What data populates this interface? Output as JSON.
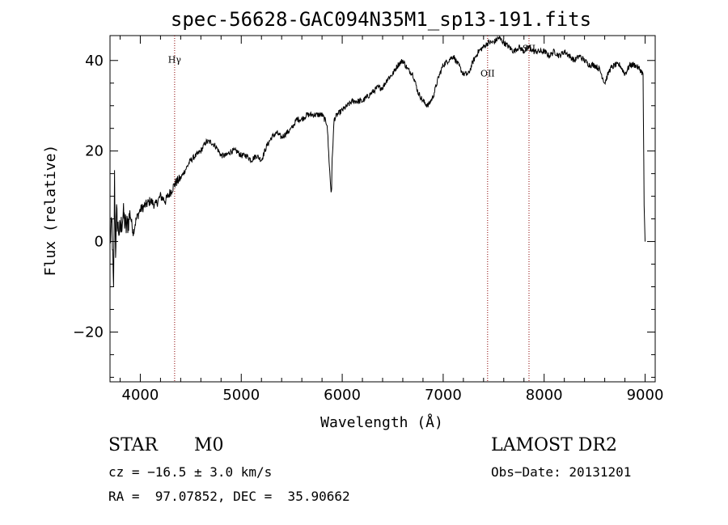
{
  "chart_data": {
    "type": "line",
    "title": "spec-56628-GAC094N35M1_sp13-191.fits",
    "xlabel": "Wavelength (Å)",
    "ylabel": "Flux (relative)",
    "xlim": [
      3700,
      9100
    ],
    "ylim": [
      -31,
      45.5
    ],
    "xticks": [
      4000,
      5000,
      6000,
      7000,
      8000,
      9000
    ],
    "xtick_labels": [
      "4000",
      "5000",
      "6000",
      "7000",
      "8000",
      "9000"
    ],
    "yticks": [
      -20,
      0,
      20,
      40
    ],
    "ytick_labels": [
      "−20",
      "0",
      "20",
      "40"
    ],
    "grid": false,
    "series": [
      {
        "color": "#000000",
        "points": [
          [
            3700,
            0
          ],
          [
            3720,
            4
          ],
          [
            3735,
            -12
          ],
          [
            3745,
            14
          ],
          [
            3755,
            -2
          ],
          [
            3765,
            6
          ],
          [
            3780,
            3
          ],
          [
            3800,
            2
          ],
          [
            3830,
            6
          ],
          [
            3860,
            3
          ],
          [
            3900,
            6
          ],
          [
            3930,
            2
          ],
          [
            3960,
            5
          ],
          [
            4000,
            7
          ],
          [
            4050,
            8
          ],
          [
            4100,
            9
          ],
          [
            4150,
            8
          ],
          [
            4200,
            10
          ],
          [
            4250,
            9
          ],
          [
            4300,
            11
          ],
          [
            4350,
            13
          ],
          [
            4400,
            14
          ],
          [
            4450,
            16
          ],
          [
            4500,
            18
          ],
          [
            4550,
            19
          ],
          [
            4600,
            20
          ],
          [
            4650,
            22
          ],
          [
            4700,
            22
          ],
          [
            4750,
            21
          ],
          [
            4800,
            19
          ],
          [
            4850,
            19
          ],
          [
            4900,
            20
          ],
          [
            4950,
            20
          ],
          [
            5000,
            19
          ],
          [
            5050,
            19
          ],
          [
            5100,
            18
          ],
          [
            5150,
            19
          ],
          [
            5200,
            18
          ],
          [
            5250,
            21
          ],
          [
            5300,
            23
          ],
          [
            5350,
            24
          ],
          [
            5400,
            23
          ],
          [
            5450,
            24
          ],
          [
            5500,
            25
          ],
          [
            5550,
            27
          ],
          [
            5600,
            27
          ],
          [
            5650,
            28
          ],
          [
            5700,
            28
          ],
          [
            5750,
            28
          ],
          [
            5800,
            28
          ],
          [
            5850,
            26
          ],
          [
            5870,
            18
          ],
          [
            5880,
            14
          ],
          [
            5890,
            11
          ],
          [
            5895,
            12
          ],
          [
            5900,
            18
          ],
          [
            5920,
            27
          ],
          [
            5950,
            28
          ],
          [
            6000,
            29
          ],
          [
            6050,
            30
          ],
          [
            6100,
            31
          ],
          [
            6150,
            31
          ],
          [
            6200,
            31
          ],
          [
            6250,
            32
          ],
          [
            6300,
            33
          ],
          [
            6350,
            34
          ],
          [
            6400,
            34
          ],
          [
            6450,
            36
          ],
          [
            6500,
            37
          ],
          [
            6550,
            39
          ],
          [
            6600,
            40
          ],
          [
            6650,
            38
          ],
          [
            6700,
            37
          ],
          [
            6750,
            33
          ],
          [
            6800,
            31
          ],
          [
            6850,
            30
          ],
          [
            6900,
            32
          ],
          [
            6950,
            36
          ],
          [
            7000,
            39
          ],
          [
            7050,
            40
          ],
          [
            7100,
            41
          ],
          [
            7150,
            39
          ],
          [
            7200,
            37
          ],
          [
            7250,
            37
          ],
          [
            7300,
            40
          ],
          [
            7350,
            42
          ],
          [
            7400,
            43
          ],
          [
            7450,
            44
          ],
          [
            7500,
            44
          ],
          [
            7550,
            45
          ],
          [
            7600,
            44
          ],
          [
            7650,
            43
          ],
          [
            7700,
            42
          ],
          [
            7750,
            43
          ],
          [
            7800,
            42
          ],
          [
            7850,
            43
          ],
          [
            7900,
            42
          ],
          [
            7950,
            42
          ],
          [
            8000,
            42
          ],
          [
            8050,
            41
          ],
          [
            8100,
            42
          ],
          [
            8150,
            41
          ],
          [
            8200,
            42
          ],
          [
            8250,
            41
          ],
          [
            8300,
            40
          ],
          [
            8350,
            41
          ],
          [
            8400,
            40
          ],
          [
            8450,
            39
          ],
          [
            8500,
            39
          ],
          [
            8550,
            38
          ],
          [
            8600,
            35
          ],
          [
            8650,
            38
          ],
          [
            8700,
            39
          ],
          [
            8750,
            39
          ],
          [
            8800,
            37
          ],
          [
            8850,
            39
          ],
          [
            8900,
            39
          ],
          [
            8950,
            38
          ],
          [
            8980,
            37
          ],
          [
            8990,
            8
          ],
          [
            9000,
            0
          ]
        ]
      }
    ],
    "line_markers": [
      {
        "label": "Hγ",
        "x": 4340,
        "label_y": 39.5,
        "color": "#8b0000"
      },
      {
        "label": "OII",
        "x": 7440,
        "label_y": 36.5,
        "color": "#8b0000"
      },
      {
        "label": "SII",
        "x": 7850,
        "label_y": 42,
        "color": "#8b0000"
      }
    ]
  },
  "info": {
    "object_class": "STAR",
    "subclass": "M0",
    "survey": "LAMOST DR2",
    "cz": "cz = −16.5 ± 3.0 km/s",
    "obs_date": "Obs−Date: 20131201",
    "coords": "RA =  97.07852, DEC =  35.90662"
  }
}
